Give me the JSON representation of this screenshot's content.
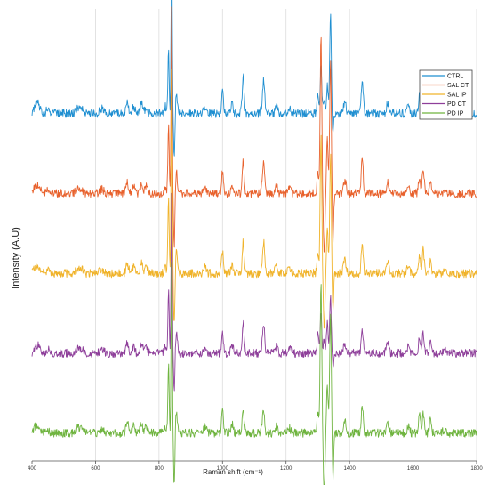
{
  "chart_data": {
    "type": "line",
    "title": "",
    "xlabel": "Raman shift (cm⁻¹)",
    "ylabel": "Intensity (A.U)",
    "xlim": [
      400,
      1800
    ],
    "x_ticks": [
      400,
      600,
      800,
      1000,
      1200,
      1400,
      1600,
      1800
    ],
    "grid": "vertical",
    "legend_position": "top-right",
    "baseline_noise": 1.2,
    "series": [
      {
        "name": "CTRL",
        "color": "#1f8fd1",
        "offset": 100,
        "peaks": [
          [
            410,
            2,
            5
          ],
          [
            420,
            2.5,
            6
          ],
          [
            450,
            1.2,
            5
          ],
          [
            545,
            1.5,
            6
          ],
          [
            557,
            1.2,
            5
          ],
          [
            620,
            1.5,
            6
          ],
          [
            700,
            3,
            4
          ],
          [
            720,
            2,
            4
          ],
          [
            745,
            3,
            4
          ],
          [
            760,
            2,
            4
          ],
          [
            820,
            2,
            3
          ],
          [
            830,
            18,
            2
          ],
          [
            840,
            50,
            1.8
          ],
          [
            848,
            -14,
            2
          ],
          [
            855,
            6,
            3
          ],
          [
            945,
            2,
            4
          ],
          [
            1000,
            6,
            3
          ],
          [
            1030,
            2.5,
            4
          ],
          [
            1065,
            11,
            3
          ],
          [
            1125,
            2,
            4
          ],
          [
            1130,
            9,
            3
          ],
          [
            1170,
            2,
            4
          ],
          [
            1210,
            1.5,
            5
          ],
          [
            1300,
            6,
            2.5
          ],
          [
            1310,
            14,
            2.5
          ],
          [
            1320,
            4,
            3
          ],
          [
            1330,
            8,
            2.5
          ],
          [
            1340,
            28,
            2.5
          ],
          [
            1348,
            -6,
            2
          ],
          [
            1385,
            3,
            4
          ],
          [
            1440,
            10,
            3
          ],
          [
            1520,
            3,
            4
          ],
          [
            1585,
            2,
            4
          ],
          [
            1620,
            5,
            3
          ],
          [
            1632,
            6,
            3
          ],
          [
            1655,
            4,
            3
          ],
          [
            1700,
            1,
            5
          ]
        ]
      },
      {
        "name": "SAL CT",
        "color": "#e8612c",
        "offset": 77,
        "peaks": [
          [
            410,
            1.5,
            5
          ],
          [
            420,
            2,
            6
          ],
          [
            450,
            1,
            5
          ],
          [
            545,
            1.5,
            6
          ],
          [
            557,
            1,
            5
          ],
          [
            620,
            1.2,
            6
          ],
          [
            700,
            3,
            4
          ],
          [
            720,
            2,
            4
          ],
          [
            745,
            3,
            4
          ],
          [
            760,
            2,
            4
          ],
          [
            820,
            2,
            3
          ],
          [
            830,
            20,
            2
          ],
          [
            840,
            55,
            1.8
          ],
          [
            848,
            -16,
            2
          ],
          [
            855,
            6,
            3
          ],
          [
            945,
            2,
            4
          ],
          [
            1000,
            6,
            3
          ],
          [
            1030,
            2.5,
            4
          ],
          [
            1065,
            9,
            3
          ],
          [
            1125,
            2,
            4
          ],
          [
            1130,
            8,
            3
          ],
          [
            1170,
            2,
            4
          ],
          [
            1210,
            1.5,
            5
          ],
          [
            1300,
            6,
            2.5
          ],
          [
            1310,
            46,
            2.5
          ],
          [
            1320,
            -18,
            2.5
          ],
          [
            1330,
            16,
            2.5
          ],
          [
            1340,
            38,
            2.5
          ],
          [
            1348,
            -14,
            2
          ],
          [
            1385,
            4,
            4
          ],
          [
            1440,
            10,
            3
          ],
          [
            1520,
            3,
            4
          ],
          [
            1585,
            2,
            4
          ],
          [
            1620,
            5,
            3
          ],
          [
            1632,
            7,
            3
          ],
          [
            1655,
            4,
            3
          ],
          [
            1700,
            1,
            5
          ]
        ]
      },
      {
        "name": "SAL IP",
        "color": "#f0b32a",
        "offset": 54,
        "peaks": [
          [
            410,
            1.5,
            5
          ],
          [
            420,
            2,
            6
          ],
          [
            450,
            1,
            5
          ],
          [
            545,
            1.5,
            6
          ],
          [
            557,
            1,
            5
          ],
          [
            620,
            1.2,
            6
          ],
          [
            700,
            3,
            4
          ],
          [
            720,
            2,
            4
          ],
          [
            745,
            3,
            4
          ],
          [
            760,
            2,
            4
          ],
          [
            820,
            2,
            3
          ],
          [
            830,
            22,
            2
          ],
          [
            840,
            60,
            1.8
          ],
          [
            848,
            -15,
            2
          ],
          [
            855,
            6,
            3
          ],
          [
            945,
            2,
            4
          ],
          [
            1000,
            6,
            3
          ],
          [
            1030,
            2.5,
            4
          ],
          [
            1065,
            9,
            3
          ],
          [
            1125,
            2,
            4
          ],
          [
            1130,
            8,
            3
          ],
          [
            1170,
            2,
            4
          ],
          [
            1210,
            1.5,
            5
          ],
          [
            1300,
            6,
            2.5
          ],
          [
            1310,
            40,
            2.5
          ],
          [
            1320,
            -16,
            2.5
          ],
          [
            1330,
            14,
            2.5
          ],
          [
            1340,
            34,
            2.5
          ],
          [
            1348,
            -12,
            2
          ],
          [
            1385,
            4,
            4
          ],
          [
            1440,
            9,
            3
          ],
          [
            1520,
            3,
            4
          ],
          [
            1585,
            2,
            4
          ],
          [
            1620,
            5,
            3
          ],
          [
            1632,
            7,
            3
          ],
          [
            1655,
            4,
            3
          ],
          [
            1700,
            1,
            5
          ]
        ]
      },
      {
        "name": "PD CT",
        "color": "#8e3f9a",
        "offset": 31,
        "peaks": [
          [
            410,
            1.5,
            5
          ],
          [
            420,
            2,
            6
          ],
          [
            450,
            1,
            5
          ],
          [
            545,
            1.5,
            6
          ],
          [
            557,
            1,
            5
          ],
          [
            620,
            1.2,
            6
          ],
          [
            700,
            3,
            4
          ],
          [
            720,
            2,
            4
          ],
          [
            745,
            3,
            4
          ],
          [
            760,
            2,
            4
          ],
          [
            820,
            2,
            3
          ],
          [
            830,
            18,
            2
          ],
          [
            840,
            48,
            1.8
          ],
          [
            848,
            -12,
            2
          ],
          [
            855,
            6,
            3
          ],
          [
            945,
            2,
            4
          ],
          [
            1000,
            6,
            3
          ],
          [
            1030,
            2.5,
            4
          ],
          [
            1065,
            9,
            3
          ],
          [
            1125,
            2,
            4
          ],
          [
            1130,
            8,
            3
          ],
          [
            1170,
            2,
            4
          ],
          [
            1210,
            1.5,
            5
          ],
          [
            1300,
            6,
            2.5
          ],
          [
            1310,
            12,
            2.5
          ],
          [
            1320,
            4,
            3
          ],
          [
            1330,
            9,
            2.5
          ],
          [
            1340,
            16,
            2.5
          ],
          [
            1348,
            -4,
            2
          ],
          [
            1385,
            3,
            4
          ],
          [
            1440,
            7,
            3
          ],
          [
            1520,
            3,
            4
          ],
          [
            1585,
            2,
            4
          ],
          [
            1620,
            5,
            3
          ],
          [
            1632,
            6,
            3
          ],
          [
            1655,
            4,
            3
          ],
          [
            1700,
            1,
            5
          ]
        ]
      },
      {
        "name": "PD IP",
        "color": "#6fb43f",
        "offset": 8,
        "peaks": [
          [
            410,
            1.5,
            5
          ],
          [
            420,
            2,
            6
          ],
          [
            450,
            1,
            5
          ],
          [
            545,
            1.5,
            6
          ],
          [
            557,
            1,
            5
          ],
          [
            620,
            1.2,
            6
          ],
          [
            700,
            3,
            4
          ],
          [
            720,
            2,
            4
          ],
          [
            745,
            3,
            4
          ],
          [
            760,
            2,
            4
          ],
          [
            820,
            2,
            3
          ],
          [
            830,
            20,
            2
          ],
          [
            840,
            52,
            1.8
          ],
          [
            848,
            -16,
            2
          ],
          [
            855,
            6,
            3
          ],
          [
            945,
            2,
            4
          ],
          [
            1000,
            6,
            3
          ],
          [
            1030,
            2.5,
            4
          ],
          [
            1065,
            7,
            3
          ],
          [
            1125,
            2,
            4
          ],
          [
            1130,
            6,
            3
          ],
          [
            1170,
            2,
            4
          ],
          [
            1210,
            1.5,
            5
          ],
          [
            1300,
            6,
            2.5
          ],
          [
            1310,
            44,
            2.5
          ],
          [
            1320,
            -18,
            2.5
          ],
          [
            1330,
            14,
            2.5
          ],
          [
            1340,
            36,
            2.5
          ],
          [
            1348,
            -14,
            2
          ],
          [
            1385,
            4,
            4
          ],
          [
            1440,
            8,
            3
          ],
          [
            1520,
            3,
            4
          ],
          [
            1585,
            2,
            4
          ],
          [
            1620,
            5,
            3
          ],
          [
            1632,
            6,
            3
          ],
          [
            1655,
            4,
            3
          ],
          [
            1700,
            1,
            5
          ]
        ]
      }
    ]
  }
}
